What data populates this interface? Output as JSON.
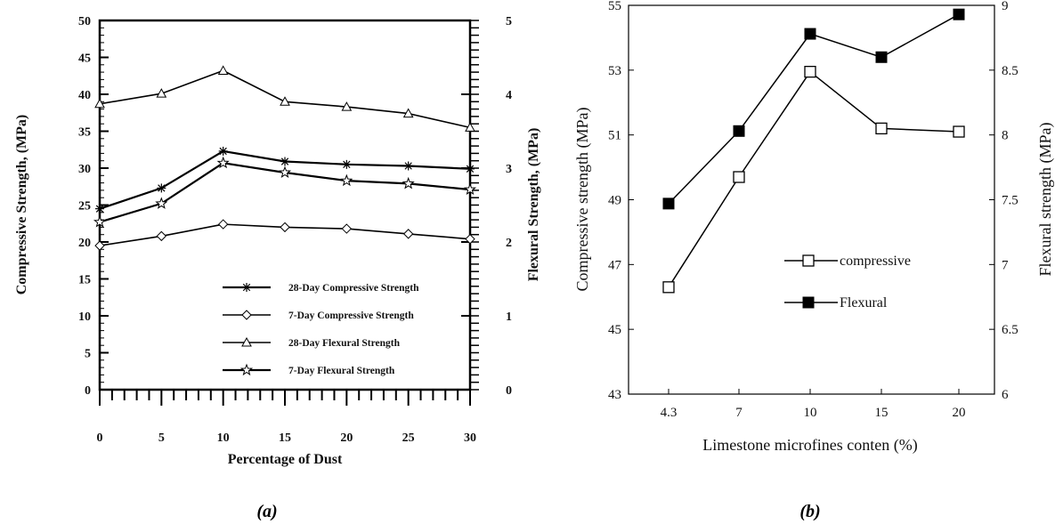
{
  "chart_data": [
    {
      "type": "line",
      "panel_label": "(a)",
      "xlabel": "Percentage of Dust",
      "ylabel": "Compressive Strength, (MPa)",
      "y2label": "Flexural Strength, (MPa)",
      "x": [
        0,
        5,
        10,
        15,
        20,
        25,
        30
      ],
      "xticks": [
        "0",
        "5",
        "10",
        "15",
        "20",
        "25",
        "30"
      ],
      "ylim": [
        0,
        50
      ],
      "yticks": [
        0,
        5,
        10,
        15,
        20,
        25,
        30,
        35,
        40,
        45,
        50
      ],
      "y2lim": [
        0,
        5
      ],
      "y2ticks": [
        0,
        1,
        2,
        3,
        4,
        5
      ],
      "legend_position": "lower-right",
      "series": [
        {
          "name": "28-Day Compressive Strength",
          "axis": "left",
          "marker": "asterisk",
          "values": [
            24.5,
            27.3,
            32.3,
            30.9,
            30.5,
            30.3,
            29.9
          ]
        },
        {
          "name": "7-Day Compressive Strength",
          "axis": "left",
          "marker": "diamond",
          "values": [
            19.5,
            20.8,
            22.4,
            22.0,
            21.8,
            21.1,
            20.4
          ]
        },
        {
          "name": "28-Day Flexural Strength",
          "axis": "right",
          "marker": "triangle",
          "values": [
            3.87,
            4.01,
            4.32,
            3.9,
            3.83,
            3.74,
            3.55
          ]
        },
        {
          "name": "7-Day Flexural Strength",
          "axis": "right",
          "marker": "star",
          "values": [
            2.27,
            2.52,
            3.07,
            2.94,
            2.83,
            2.79,
            2.71
          ]
        }
      ]
    },
    {
      "type": "line",
      "panel_label": "(b)",
      "xlabel": "Limestone microfines conten (%)",
      "ylabel": "Compressive strength (MPa)",
      "y2label": "Flexural strength (MPa)",
      "categories": [
        "4.3",
        "7",
        "10",
        "15",
        "20"
      ],
      "ylim": [
        43,
        55
      ],
      "yticks": [
        "43",
        "45",
        "47",
        "49",
        "51",
        "53",
        "55"
      ],
      "y2lim": [
        6,
        9
      ],
      "y2ticks": [
        "6",
        "6.5",
        "7",
        "7.5",
        "8",
        "8.5",
        "9"
      ],
      "legend_position": "center",
      "series": [
        {
          "name": "compressive",
          "axis": "left",
          "marker": "open-square",
          "values": [
            46.3,
            49.7,
            52.95,
            51.2,
            51.1
          ]
        },
        {
          "name": "Flexural",
          "axis": "right",
          "marker": "filled-square",
          "values": [
            7.47,
            8.03,
            8.78,
            8.6,
            8.93
          ]
        }
      ]
    }
  ]
}
